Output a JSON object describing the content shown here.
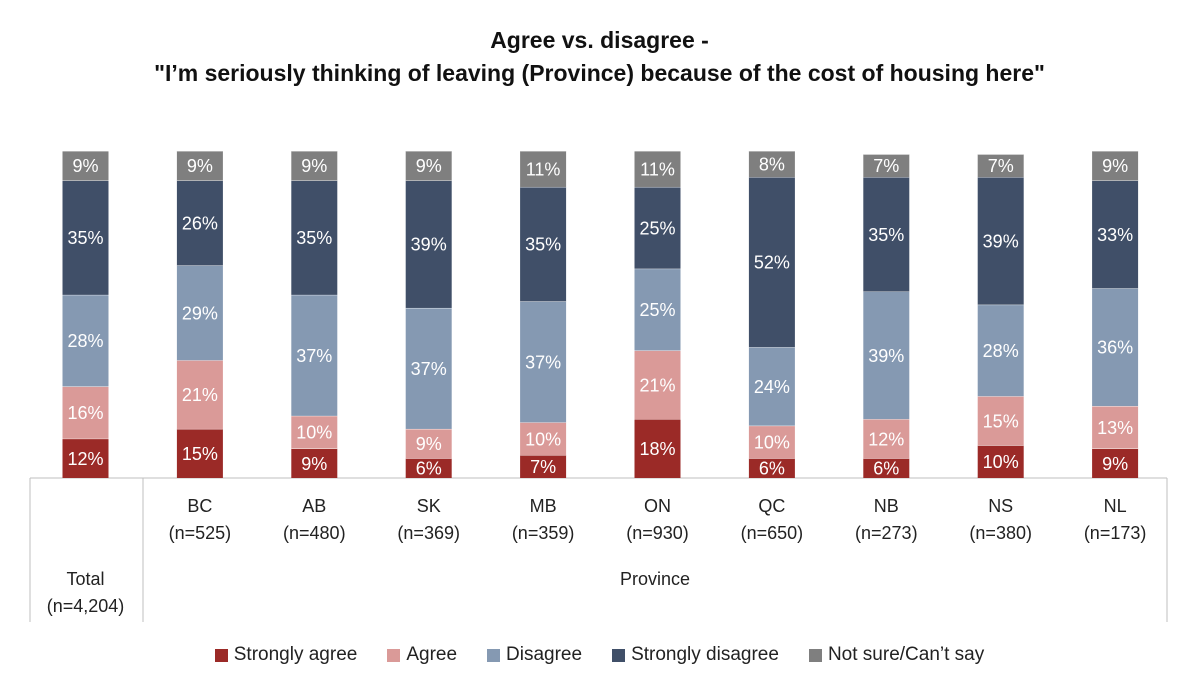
{
  "chart_data": {
    "type": "bar",
    "stacked": true,
    "title_line1": "Agree vs. disagree -",
    "title_line2": "\"I’m seriously thinking of leaving (Province) because of the cost of housing here\"",
    "categories": [
      {
        "name": "Total",
        "n": "(n=4,204)"
      },
      {
        "name": "BC",
        "n": "(n=525)"
      },
      {
        "name": "AB",
        "n": "(n=480)"
      },
      {
        "name": "SK",
        "n": "(n=369)"
      },
      {
        "name": "MB",
        "n": "(n=359)"
      },
      {
        "name": "ON",
        "n": "(n=930)"
      },
      {
        "name": "QC",
        "n": "(n=650)"
      },
      {
        "name": "NB",
        "n": "(n=273)"
      },
      {
        "name": "NS",
        "n": "(n=380)"
      },
      {
        "name": "NL",
        "n": "(n=173)"
      }
    ],
    "group_label": "Province",
    "series": [
      {
        "name": "Strongly agree",
        "color": "#9B2A27",
        "values": [
          12,
          15,
          9,
          6,
          7,
          18,
          6,
          6,
          10,
          9
        ]
      },
      {
        "name": "Agree",
        "color": "#DA9A98",
        "values": [
          16,
          21,
          10,
          9,
          10,
          21,
          10,
          12,
          15,
          13
        ]
      },
      {
        "name": "Disagree",
        "color": "#8599B2",
        "values": [
          28,
          29,
          37,
          37,
          37,
          25,
          24,
          39,
          28,
          36
        ]
      },
      {
        "name": "Strongly disagree",
        "color": "#404F68",
        "values": [
          35,
          26,
          35,
          39,
          35,
          25,
          52,
          35,
          39,
          33
        ]
      },
      {
        "name": "Not sure/Can’t say",
        "color": "#7F7F7F",
        "values": [
          9,
          9,
          9,
          9,
          11,
          11,
          8,
          7,
          7,
          9
        ]
      }
    ],
    "value_suffix": "%",
    "legend_position": "bottom"
  }
}
